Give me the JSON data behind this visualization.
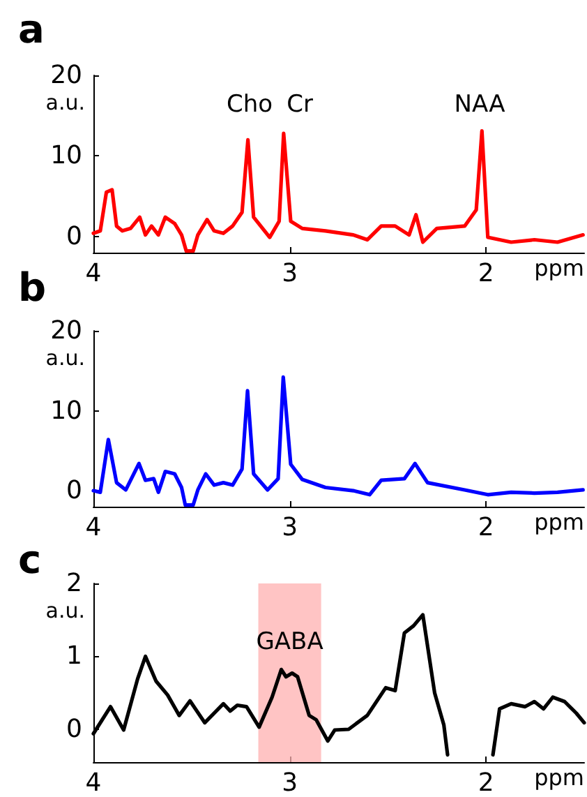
{
  "chart_data": [
    {
      "type": "line",
      "title": "a",
      "xlabel": "ppm",
      "ylabel": "a.u.",
      "color": "#ff0000",
      "xlim": [
        4,
        1.5
      ],
      "xticks": [
        4,
        3,
        2
      ],
      "ylim": [
        -2,
        20
      ],
      "yticks": [
        0,
        10,
        20
      ],
      "annotations": [
        "Cho",
        "Cr",
        "NAA"
      ],
      "x": [
        4,
        3.965,
        3.934,
        3.905,
        3.882,
        3.853,
        3.811,
        3.764,
        3.735,
        3.704,
        3.669,
        3.634,
        3.586,
        3.551,
        3.527,
        3.492,
        3.468,
        3.421,
        3.385,
        3.338,
        3.291,
        3.243,
        3.213,
        3.184,
        3.102,
        3.054,
        3.031,
        2.995,
        2.936,
        2.818,
        2.676,
        2.605,
        2.534,
        2.463,
        2.392,
        2.357,
        2.322,
        2.251,
        2.109,
        2.05,
        2.021,
        1.991,
        1.872,
        1.754,
        1.636,
        1.506
      ],
      "values": [
        0.4,
        0.7,
        5.5,
        5.8,
        1.3,
        0.7,
        1.0,
        2.4,
        0.2,
        1.3,
        0.2,
        2.4,
        1.6,
        0.2,
        -1.8,
        -1.8,
        0.2,
        2.1,
        0.7,
        0.4,
        1.3,
        3.0,
        12.0,
        2.4,
        -0.1,
        1.9,
        12.8,
        1.9,
        1.0,
        0.7,
        0.2,
        -0.4,
        1.3,
        1.3,
        0.2,
        2.7,
        -0.7,
        1.0,
        1.3,
        3.3,
        13.1,
        -0.1,
        -0.7,
        -0.4,
        -0.7,
        0.2
      ]
    },
    {
      "type": "line",
      "title": "b",
      "xlabel": "ppm",
      "ylabel": "a.u.",
      "color": "#0000ff",
      "xlim": [
        4,
        1.5
      ],
      "xticks": [
        4,
        3,
        2
      ],
      "ylim": [
        -2,
        20
      ],
      "yticks": [
        0,
        10,
        20
      ],
      "x": [
        4,
        3.965,
        3.924,
        3.882,
        3.835,
        3.768,
        3.735,
        3.693,
        3.669,
        3.634,
        3.586,
        3.551,
        3.532,
        3.492,
        3.468,
        3.428,
        3.385,
        3.338,
        3.291,
        3.243,
        3.215,
        3.184,
        3.113,
        3.059,
        3.033,
        2.995,
        2.936,
        2.818,
        2.676,
        2.593,
        2.534,
        2.416,
        2.362,
        2.298,
        2.109,
        1.991,
        1.872,
        1.754,
        1.636,
        1.506
      ],
      "values": [
        0,
        -0.2,
        6.4,
        1.0,
        0.1,
        3.4,
        1.3,
        1.5,
        -0.2,
        2.4,
        2.1,
        0.4,
        -1.8,
        -1.8,
        0.1,
        2.1,
        0.7,
        1.0,
        0.7,
        2.7,
        12.5,
        2.1,
        0.1,
        1.5,
        14.2,
        3.3,
        1.4,
        0.4,
        0,
        -0.5,
        1.3,
        1.5,
        3.4,
        1.0,
        0.1,
        -0.5,
        -0.2,
        -0.3,
        -0.2,
        0.1
      ]
    },
    {
      "type": "line",
      "title": "c",
      "xlabel": "ppm",
      "ylabel": "a.u.",
      "color": "#000000",
      "xlim": [
        4,
        1.5
      ],
      "xticks": [
        4,
        3,
        2
      ],
      "ylim": [
        -0.45,
        2
      ],
      "yticks": [
        0,
        1,
        2
      ],
      "bands": [
        {
          "axis": "x",
          "from": 3.16,
          "to": 2.84,
          "label": "GABA",
          "color": "#ffb0b0"
        }
      ],
      "x": [
        4,
        3.913,
        3.846,
        3.775,
        3.735,
        3.681,
        3.622,
        3.563,
        3.508,
        3.433,
        3.338,
        3.303,
        3.267,
        3.22,
        3.156,
        3.09,
        3.043,
        3.019,
        2.988,
        2.96,
        2.901,
        2.865,
        2.806,
        2.771,
        2.7,
        2.605,
        2.511,
        2.463,
        2.416,
        2.369,
        2.322,
        2.262,
        2.215,
        2.196,
        2.08,
        1.965,
        1.931,
        1.872,
        1.801,
        1.754,
        1.707,
        1.66,
        1.6,
        1.54,
        1.5
      ],
      "values": [
        -0.06,
        0.31,
        -0.01,
        0.69,
        1.0,
        0.66,
        0.47,
        0.19,
        0.39,
        0.09,
        0.35,
        0.25,
        0.33,
        0.31,
        0.03,
        0.44,
        0.82,
        0.72,
        0.77,
        0.72,
        0.19,
        0.13,
        -0.16,
        -0.01,
        0,
        0.19,
        0.57,
        0.53,
        1.32,
        1.42,
        1.57,
        0.5,
        0.06,
        -0.35,
        null,
        -0.35,
        0.28,
        0.35,
        0.31,
        0.38,
        0.28,
        0.44,
        0.38,
        0.22,
        0.09
      ]
    }
  ]
}
